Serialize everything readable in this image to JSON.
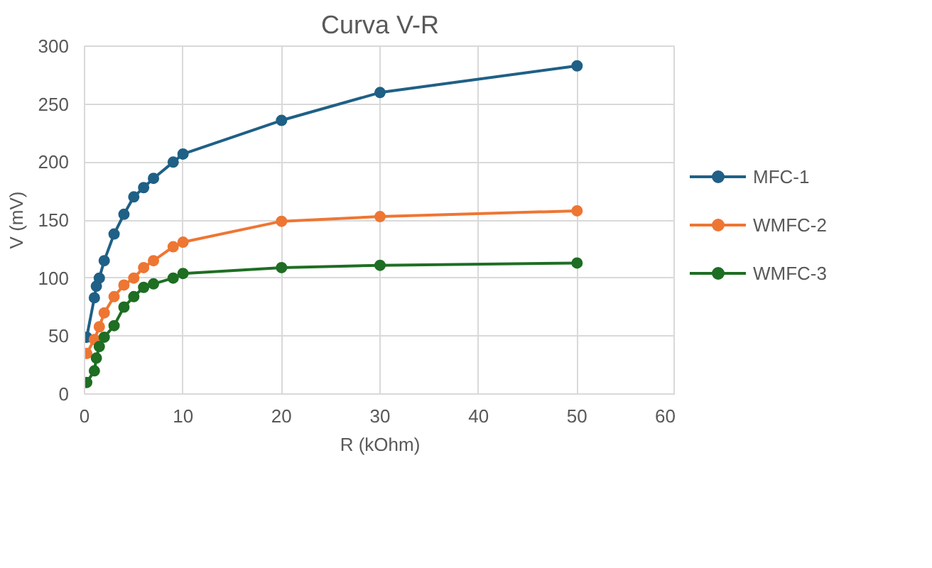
{
  "chart_data": {
    "type": "line",
    "title": "Curva V-R",
    "xlabel": "R (kOhm)",
    "ylabel": "V (mV)",
    "x": [
      0.22,
      1,
      1.2,
      1.5,
      2,
      3,
      4,
      5,
      6,
      7,
      9,
      10,
      20,
      30,
      50
    ],
    "series": [
      {
        "name": "MFC-1",
        "color": "#1f6086",
        "values": [
          49,
          83,
          93,
          100,
          115,
          138,
          155,
          170,
          178,
          186,
          200,
          207,
          236,
          260,
          283
        ]
      },
      {
        "name": "WMFC-2",
        "color": "#ee7633",
        "values": [
          35,
          47,
          null,
          58,
          70,
          84,
          94,
          100,
          109,
          115,
          127,
          131,
          149,
          153,
          158
        ]
      },
      {
        "name": "WMFC-3",
        "color": "#1e6e23",
        "values": [
          10,
          20,
          31,
          41,
          49,
          59,
          75,
          84,
          92,
          95,
          100,
          104,
          109,
          111,
          113
        ]
      }
    ],
    "xlim": [
      0,
      60
    ],
    "xticks": [
      0,
      10,
      20,
      30,
      40,
      50,
      60
    ],
    "ylim": [
      0,
      300
    ],
    "yticks": [
      0,
      50,
      100,
      150,
      200,
      250,
      300
    ],
    "grid": true,
    "legend": "right",
    "marker": "circle",
    "line_style": "solid"
  }
}
